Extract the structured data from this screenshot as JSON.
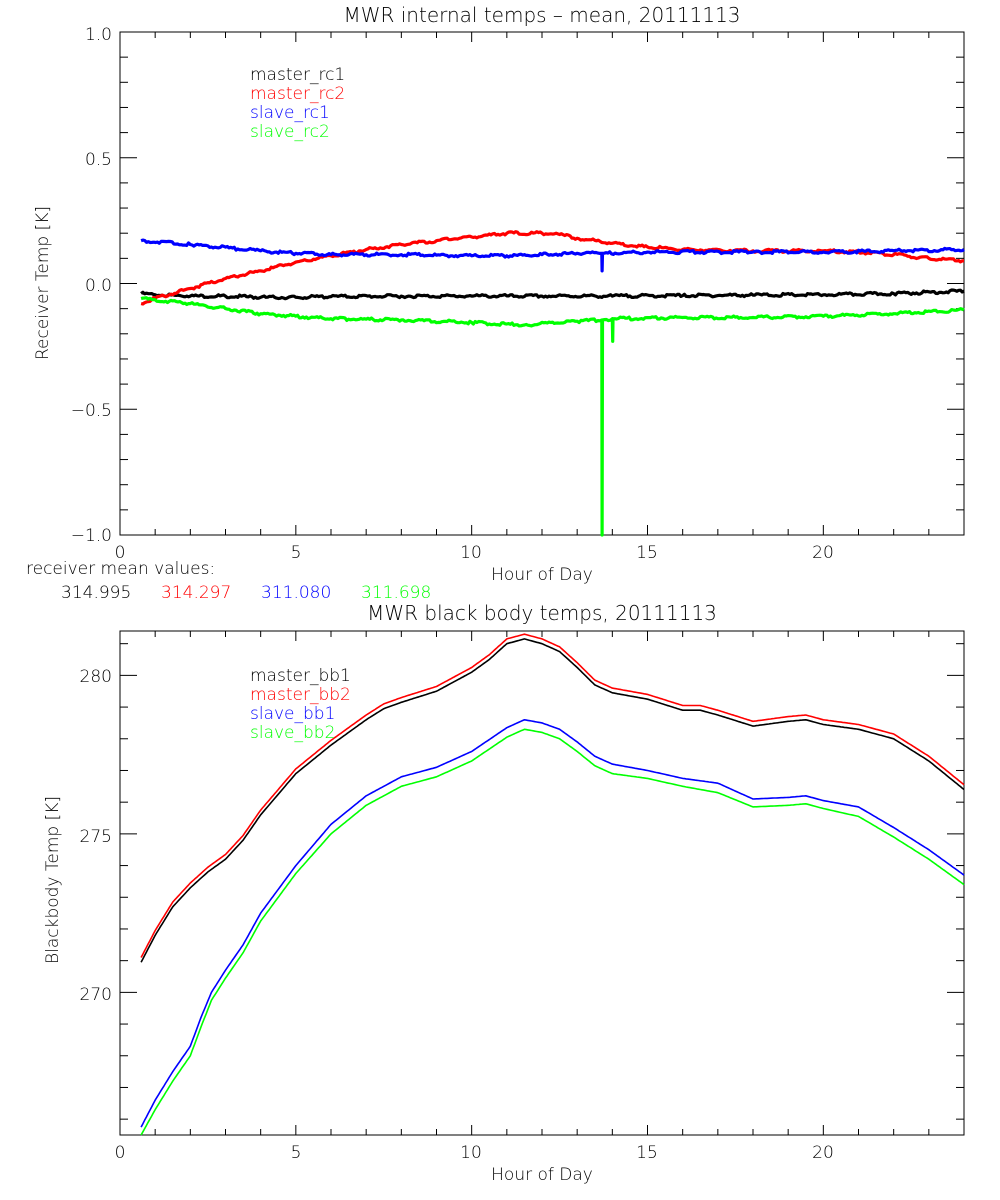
{
  "chart_data": [
    {
      "type": "line",
      "title": "MWR internal temps – mean, 20111113",
      "xlabel": "Hour of Day",
      "ylabel": "Receiver Temp [K]",
      "xlim": [
        0,
        24
      ],
      "ylim": [
        -1.0,
        1.0
      ],
      "xticks": [
        0,
        5,
        10,
        15,
        20
      ],
      "xtick_labels": [
        "0",
        "5",
        "10",
        "15",
        "20"
      ],
      "yticks": [
        1.0,
        0.5,
        0.0,
        -0.5,
        -1.0
      ],
      "ytick_labels": [
        "1.0",
        "0.5",
        "0.0",
        "−0.5",
        "−1.0"
      ],
      "grid": false,
      "legend_position": "top-left",
      "series": [
        {
          "name": "master_rc1",
          "color": "#000000",
          "x": [
            0.6,
            1,
            2,
            3,
            4,
            5,
            6,
            8,
            10,
            12,
            14,
            16,
            18,
            20,
            22,
            24
          ],
          "y": [
            -0.04,
            -0.045,
            -0.05,
            -0.05,
            -0.055,
            -0.055,
            -0.052,
            -0.05,
            -0.05,
            -0.05,
            -0.05,
            -0.048,
            -0.046,
            -0.045,
            -0.04,
            -0.03
          ]
        },
        {
          "name": "master_rc2",
          "color": "#ff0000",
          "x": [
            0.6,
            1,
            2,
            3,
            4,
            5,
            6,
            7,
            8,
            9,
            10,
            11,
            12,
            12.5,
            13,
            14,
            15,
            16,
            18,
            20,
            21,
            22,
            23,
            24
          ],
          "y": [
            -0.08,
            -0.06,
            -0.02,
            0.02,
            0.05,
            0.085,
            0.11,
            0.135,
            0.155,
            0.17,
            0.185,
            0.2,
            0.2,
            0.195,
            0.18,
            0.16,
            0.145,
            0.135,
            0.13,
            0.13,
            0.125,
            0.115,
            0.1,
            0.09
          ]
        },
        {
          "name": "slave_rc1",
          "color": "#0000ff",
          "x": [
            0.6,
            2,
            4,
            5,
            6,
            8,
            10,
            11,
            12,
            13,
            13.7,
            13.71,
            13.72,
            15,
            18,
            20,
            22,
            24
          ],
          "y": [
            0.17,
            0.155,
            0.13,
            0.12,
            0.115,
            0.115,
            0.11,
            0.11,
            0.115,
            0.12,
            0.12,
            0.05,
            0.12,
            0.125,
            0.125,
            0.125,
            0.13,
            0.135
          ]
        },
        {
          "name": "slave_rc2",
          "color": "#00ff00",
          "x": [
            0.6,
            1,
            2,
            3,
            4,
            5,
            6,
            8,
            10,
            11.5,
            13,
            13.7,
            13.71,
            13.72,
            14.0,
            14.01,
            14.02,
            16,
            18,
            20,
            22,
            24
          ],
          "y": [
            -0.06,
            -0.065,
            -0.08,
            -0.1,
            -0.12,
            -0.13,
            -0.14,
            -0.145,
            -0.155,
            -0.165,
            -0.15,
            -0.145,
            -1.0,
            -0.145,
            -0.14,
            -0.23,
            -0.14,
            -0.135,
            -0.135,
            -0.13,
            -0.12,
            -0.105
          ]
        }
      ],
      "annotation": {
        "label": "receiver mean values:",
        "values": [
          {
            "text": "314.995",
            "color": "#000000"
          },
          {
            "text": "314.297",
            "color": "#ff0000"
          },
          {
            "text": "311.080",
            "color": "#0000ff"
          },
          {
            "text": "311.698",
            "color": "#00ff00"
          }
        ]
      }
    },
    {
      "type": "line",
      "title": "MWR black body temps, 20111113",
      "xlabel": "Hour of Day",
      "ylabel": "Blackbody Temp [K]",
      "xlim": [
        0,
        24
      ],
      "ylim": [
        265.5,
        281.4
      ],
      "xticks": [
        0,
        5,
        10,
        15,
        20
      ],
      "xtick_labels": [
        "0",
        "5",
        "10",
        "15",
        "20"
      ],
      "yticks": [
        270,
        275,
        280
      ],
      "ytick_labels": [
        "270",
        "275",
        "280"
      ],
      "grid": false,
      "legend_position": "top-left",
      "series": [
        {
          "name": "master_bb1",
          "color": "#000000",
          "x": [
            0.6,
            1,
            1.5,
            2,
            2.5,
            3,
            3.5,
            4,
            5,
            6,
            7,
            7.5,
            8,
            9,
            10,
            10.5,
            11,
            11.5,
            12,
            12.5,
            13,
            13.5,
            14,
            15,
            16,
            16.5,
            17,
            18,
            19,
            19.5,
            20,
            21,
            22,
            23,
            24
          ],
          "y": [
            270.95,
            271.8,
            272.7,
            273.3,
            273.8,
            274.2,
            274.8,
            275.6,
            276.9,
            277.8,
            278.6,
            278.95,
            279.15,
            279.5,
            280.1,
            280.5,
            281.0,
            281.15,
            281.0,
            280.75,
            280.25,
            279.7,
            279.45,
            279.25,
            278.9,
            278.9,
            278.75,
            278.4,
            278.55,
            278.6,
            278.45,
            278.3,
            278.0,
            277.3,
            276.4
          ]
        },
        {
          "name": "master_bb2",
          "color": "#ff0000",
          "x": [
            0.6,
            1,
            1.5,
            2,
            2.5,
            3,
            3.5,
            4,
            5,
            6,
            7,
            7.5,
            8,
            9,
            10,
            10.5,
            11,
            11.5,
            12,
            12.5,
            13,
            13.5,
            14,
            15,
            16,
            16.5,
            17,
            18,
            19,
            19.5,
            20,
            21,
            22,
            23,
            24
          ],
          "y": [
            271.1,
            271.95,
            272.85,
            273.45,
            273.95,
            274.35,
            274.95,
            275.75,
            277.05,
            277.95,
            278.75,
            279.1,
            279.3,
            279.65,
            280.25,
            280.65,
            281.15,
            281.3,
            281.15,
            280.9,
            280.4,
            279.85,
            279.6,
            279.4,
            279.05,
            279.05,
            278.9,
            278.55,
            278.7,
            278.75,
            278.6,
            278.45,
            278.15,
            277.45,
            276.55
          ]
        },
        {
          "name": "slave_bb1",
          "color": "#0000ff",
          "x": [
            0.6,
            1,
            1.5,
            2,
            2.3,
            2.6,
            3,
            3.5,
            4,
            5,
            6,
            7,
            8,
            9,
            10,
            11,
            11.5,
            12,
            12.5,
            13,
            13.5,
            14,
            15,
            16,
            17,
            18,
            19,
            19.5,
            20,
            21,
            22,
            23,
            24
          ],
          "y": [
            265.75,
            266.6,
            267.5,
            268.3,
            269.2,
            270.0,
            270.7,
            271.5,
            272.5,
            274.0,
            275.3,
            276.2,
            276.8,
            277.1,
            277.6,
            278.35,
            278.6,
            278.5,
            278.3,
            277.9,
            277.45,
            277.2,
            277.0,
            276.75,
            276.6,
            276.1,
            276.15,
            276.2,
            276.05,
            275.85,
            275.2,
            274.5,
            273.7
          ]
        },
        {
          "name": "slave_bb2",
          "color": "#00ff00",
          "x": [
            0.6,
            1,
            1.5,
            2,
            2.3,
            2.6,
            3,
            3.5,
            4,
            5,
            6,
            7,
            8,
            9,
            10,
            11,
            11.5,
            12,
            12.5,
            13,
            13.5,
            14,
            15,
            16,
            17,
            18,
            19,
            19.5,
            20,
            21,
            22,
            23,
            24
          ],
          "y": [
            265.5,
            266.3,
            267.2,
            268.0,
            268.9,
            269.75,
            270.45,
            271.25,
            272.25,
            273.75,
            275.0,
            275.9,
            276.5,
            276.8,
            277.3,
            278.05,
            278.3,
            278.2,
            278.0,
            277.6,
            277.15,
            276.9,
            276.75,
            276.5,
            276.3,
            275.85,
            275.9,
            275.95,
            275.8,
            275.55,
            274.9,
            274.2,
            273.4
          ]
        }
      ]
    }
  ]
}
